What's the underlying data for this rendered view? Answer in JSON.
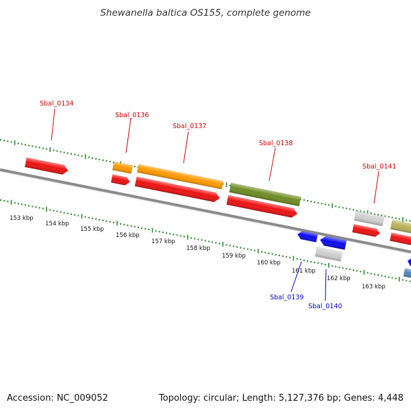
{
  "title": "Shewanella baltica OS155, complete genome",
  "footer": {
    "accession": "Accession: NC_009052",
    "topology": "Topology: circular; Length: 5,127,376 bp; Genes: 4,448"
  },
  "colors": {
    "backbone": "#8a8a8a",
    "ticks": "#2e8b2e",
    "red": "#ee1111",
    "orange": "#ff9900",
    "olive": "#6e8c22",
    "gray": "#cfcfcf",
    "blue": "#0a0aee",
    "khaki": "#b8b25a",
    "steelblue": "#4f85c0",
    "label_top": "#cc0000",
    "label_bottom": "#0000bb"
  },
  "scale_labels": [
    "153 kbp",
    "154 kbp",
    "155 kbp",
    "156 kbp",
    "157 kbp",
    "158 kbp",
    "159 kbp",
    "160 kbp",
    "161 kbp",
    "162 kbp",
    "163 kbp"
  ],
  "gene_labels_top": [
    "Sbal_0134",
    "Sbal_0136",
    "Sbal_0137",
    "Sbal_0138",
    "Sbal_0141"
  ],
  "gene_labels_bottom": [
    "Sbal_0139",
    "Sbal_0140"
  ],
  "features": [
    {
      "id": "f1",
      "color": "red"
    },
    {
      "id": "f2",
      "color": "orange"
    },
    {
      "id": "f3",
      "color": "red"
    },
    {
      "id": "f4",
      "color": "orange"
    },
    {
      "id": "f5",
      "color": "red"
    },
    {
      "id": "f6",
      "color": "olive"
    },
    {
      "id": "f7",
      "color": "red"
    },
    {
      "id": "f8",
      "color": "gray"
    },
    {
      "id": "f9",
      "color": "red"
    },
    {
      "id": "f10",
      "color": "khaki"
    },
    {
      "id": "f11",
      "color": "red"
    },
    {
      "id": "f12",
      "color": "blue"
    },
    {
      "id": "f13",
      "color": "blue"
    },
    {
      "id": "f14",
      "color": "gray"
    },
    {
      "id": "f15",
      "color": "blue"
    },
    {
      "id": "f16",
      "color": "steelblue"
    }
  ]
}
